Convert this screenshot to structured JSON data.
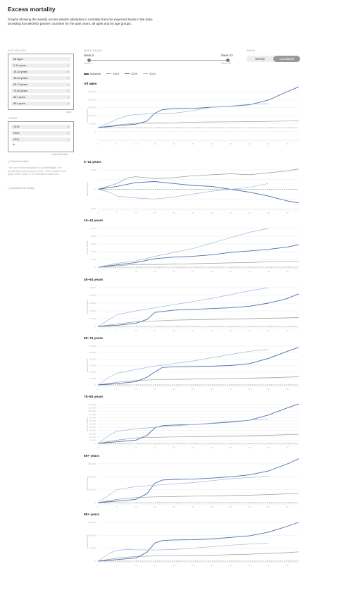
{
  "header": {
    "title": "Excess mortality",
    "description": "Graphs showing the weekly excess deaths (deviation in mortality from the expected level) in the data-providing EuroMOMO partner countries for the past years, all ages and by age groups."
  },
  "controls": {
    "age_groups_label": "AGE GROUPS",
    "age_groups": [
      "All ages",
      "0-14 years",
      "15-44 years",
      "45-64 years",
      "65-74 years",
      "75-84 years",
      "65+ years",
      "85+ years"
    ],
    "age_clear": "clear",
    "years_label": "YEARS",
    "years": [
      "2019",
      "2020",
      "2021"
    ],
    "add_year": "+",
    "select_clear": "select all | clear",
    "week_range_label": "WEEK RANGE",
    "week_start": "Week 0",
    "week_end": "Week 53",
    "week_start_sub": "Week 0",
    "week_end_sub": "Week 53",
    "show_label": "SHOW",
    "show_options": [
      "Weekly",
      "Cumulated"
    ],
    "show_selected": "Cumulated",
    "download_data": "⤓ Download data",
    "note": "* Any use of this data/graphs is acknowledged: \"the EuroMOMO (euromomo.eu) 2021\". When posted to the graph will be pulled to the estimated source use.",
    "download_image": "⤓ Download as image"
  },
  "colors": {
    "baseline": "#555555",
    "y2019": "#9a9a9a",
    "y2020": "#4a6fb0",
    "y2021": "#9fb8df",
    "grid": "#ececec",
    "tick": "#bbbbbb"
  },
  "chart_data": [
    {
      "type": "line",
      "title": "All ages",
      "ylabel": "Excess deaths",
      "ylim": [
        -100000,
        300000
      ],
      "yticks": [
        "",
        "0",
        "50 000",
        "100 000",
        "150 000",
        "200 000",
        "250 000"
      ],
      "xticks": [
        "0",
        "5",
        "10",
        "15",
        "20",
        "25",
        "30",
        "35",
        "40",
        "45",
        "50"
      ],
      "series": [
        {
          "name": "2019",
          "x": [
            0,
            5,
            10,
            15,
            20,
            25,
            30,
            35,
            40,
            45,
            50,
            53
          ],
          "values": [
            0,
            22000,
            37000,
            38000,
            40000,
            45000,
            47000,
            48000,
            50000,
            52000,
            55000,
            56000
          ]
        },
        {
          "name": "2020",
          "x": [
            0,
            5,
            10,
            13,
            15,
            17,
            20,
            25,
            30,
            35,
            40,
            45,
            50,
            53
          ],
          "values": [
            0,
            15000,
            28000,
            55000,
            120000,
            150000,
            158000,
            160000,
            170000,
            178000,
            190000,
            230000,
            300000,
            340000
          ]
        },
        {
          "name": "2021",
          "x": [
            0,
            3,
            5,
            8,
            10,
            15,
            20,
            25,
            30,
            35,
            40,
            45
          ],
          "values": [
            0,
            40000,
            70000,
            100000,
            110000,
            115000,
            120000,
            140000,
            170000,
            180000,
            195000,
            200000
          ]
        }
      ]
    },
    {
      "type": "line",
      "title": "0–14 years",
      "ylabel": "Excess deaths",
      "ylim": [
        -1000,
        1000
      ],
      "yticks": [
        "-1000",
        "",
        "0",
        "",
        "1000"
      ],
      "xticks": [
        "0",
        "5",
        "10",
        "15",
        "20",
        "25",
        "30",
        "35",
        "40",
        "45",
        "50"
      ],
      "series": [
        {
          "name": "2019",
          "x": [
            0,
            5,
            8,
            10,
            15,
            20,
            25,
            30,
            35,
            40,
            45,
            50,
            53
          ],
          "values": [
            0,
            300,
            600,
            650,
            550,
            600,
            700,
            750,
            800,
            750,
            850,
            950,
            1050
          ]
        },
        {
          "name": "2020",
          "x": [
            0,
            5,
            10,
            15,
            20,
            25,
            30,
            35,
            40,
            45,
            50,
            53
          ],
          "values": [
            0,
            150,
            350,
            400,
            300,
            200,
            150,
            0,
            -150,
            -350,
            -600,
            -700
          ]
        },
        {
          "name": "2021",
          "x": [
            0,
            3,
            5,
            10,
            15,
            20,
            25,
            30,
            35,
            40,
            45
          ],
          "values": [
            0,
            -150,
            -350,
            -450,
            -500,
            -400,
            -250,
            -100,
            0,
            100,
            300
          ]
        }
      ]
    },
    {
      "type": "line",
      "title": "15–44 years",
      "ylabel": "Excess deaths",
      "ylim": [
        0,
        5000
      ],
      "yticks": [
        "0",
        "1 000",
        "2 000",
        "3 000",
        "4 000",
        "5 000"
      ],
      "xticks": [
        "0",
        "5",
        "10",
        "15",
        "20",
        "25",
        "30",
        "35",
        "40",
        "45",
        "50"
      ],
      "series": [
        {
          "name": "2019",
          "x": [
            0,
            5,
            10,
            15,
            20,
            25,
            30,
            35,
            40,
            45,
            50,
            53
          ],
          "values": [
            0,
            200,
            350,
            350,
            400,
            450,
            500,
            550,
            600,
            700,
            750,
            800
          ]
        },
        {
          "name": "2020",
          "x": [
            0,
            5,
            10,
            15,
            20,
            25,
            30,
            35,
            40,
            45,
            50,
            53
          ],
          "values": [
            0,
            300,
            600,
            1100,
            1300,
            1400,
            1600,
            1900,
            2100,
            2300,
            2600,
            2900
          ]
        },
        {
          "name": "2021",
          "x": [
            0,
            5,
            10,
            15,
            20,
            25,
            30,
            35,
            40,
            45
          ],
          "values": [
            0,
            500,
            800,
            1400,
            1900,
            2400,
            3100,
            3800,
            4500,
            5000
          ]
        }
      ]
    },
    {
      "type": "line",
      "title": "45–64 years",
      "ylabel": "Excess deaths",
      "ylim": [
        0,
        50000
      ],
      "yticks": [
        "0",
        "10 000",
        "20 000",
        "30 000",
        "40 000",
        "50 000"
      ],
      "xticks": [
        "0",
        "5",
        "10",
        "15",
        "20",
        "25",
        "30",
        "35",
        "40",
        "45",
        "50"
      ],
      "series": [
        {
          "name": "2019",
          "x": [
            0,
            5,
            10,
            15,
            20,
            25,
            30,
            35,
            40,
            45,
            50,
            53
          ],
          "values": [
            0,
            3000,
            6000,
            7000,
            8000,
            8500,
            9000,
            9500,
            10000,
            10500,
            11000,
            11500
          ]
        },
        {
          "name": "2020",
          "x": [
            0,
            5,
            10,
            13,
            15,
            20,
            25,
            30,
            35,
            40,
            45,
            50,
            53
          ],
          "values": [
            0,
            1500,
            4000,
            9000,
            18000,
            21000,
            22000,
            23000,
            24000,
            26000,
            30000,
            36000,
            42000
          ]
        },
        {
          "name": "2021",
          "x": [
            0,
            3,
            5,
            10,
            15,
            20,
            25,
            30,
            35,
            40,
            45
          ],
          "values": [
            0,
            9000,
            15000,
            20000,
            24000,
            28000,
            32000,
            36000,
            41000,
            46000,
            50000
          ]
        }
      ]
    },
    {
      "type": "line",
      "title": "65–74 years",
      "ylabel": "Excess deaths",
      "ylim": [
        0,
        60000
      ],
      "yticks": [
        "0",
        "10 000",
        "20 000",
        "30 000",
        "40 000",
        "50 000",
        "60 000"
      ],
      "xticks": [
        "0",
        "5",
        "10",
        "15",
        "20",
        "25",
        "30",
        "35",
        "40",
        "45",
        "50"
      ],
      "series": [
        {
          "name": "2019",
          "x": [
            0,
            5,
            10,
            15,
            20,
            25,
            30,
            35,
            40,
            45,
            50,
            53
          ],
          "values": [
            0,
            4000,
            7000,
            8000,
            8500,
            9000,
            9500,
            10000,
            10500,
            11000,
            12000,
            12500
          ]
        },
        {
          "name": "2020",
          "x": [
            0,
            5,
            10,
            13,
            15,
            17,
            20,
            25,
            30,
            35,
            40,
            45,
            50,
            53
          ],
          "values": [
            0,
            2000,
            5000,
            12000,
            20000,
            27000,
            28000,
            28500,
            29000,
            30000,
            33000,
            41000,
            52000,
            58000
          ]
        },
        {
          "name": "2021",
          "x": [
            0,
            3,
            5,
            10,
            15,
            20,
            25,
            30,
            35,
            40,
            45
          ],
          "values": [
            0,
            12000,
            18000,
            24000,
            29000,
            33000,
            37000,
            42000,
            47000,
            52000,
            55000
          ]
        }
      ]
    },
    {
      "type": "line",
      "title": "75–84 years",
      "ylabel": "Excess deaths",
      "ylim": [
        0,
        120000
      ],
      "yticks": [
        "0",
        "10 000",
        "20 000",
        "30 000",
        "40 000",
        "50 000",
        "60 000",
        "70 000",
        "80 000",
        "90 000",
        "100 000",
        "110 000",
        "120 000"
      ],
      "xticks": [
        "0",
        "5",
        "10",
        "15",
        "20",
        "25",
        "30",
        "35",
        "40",
        "45",
        "50"
      ],
      "series": [
        {
          "name": "2019",
          "x": [
            0,
            5,
            10,
            15,
            20,
            25,
            30,
            35,
            40,
            45,
            50,
            53
          ],
          "values": [
            0,
            10000,
            17000,
            19000,
            20000,
            21000,
            22000,
            23000,
            24000,
            25000,
            27000,
            28000
          ]
        },
        {
          "name": "2020",
          "x": [
            0,
            5,
            10,
            13,
            15,
            17,
            20,
            25,
            30,
            35,
            40,
            45,
            50,
            53
          ],
          "values": [
            0,
            5000,
            10000,
            25000,
            48000,
            55000,
            57000,
            58000,
            62000,
            66000,
            72000,
            88000,
            110000,
            122000
          ]
        },
        {
          "name": "2021",
          "x": [
            0,
            3,
            5,
            10,
            15,
            20,
            25,
            30,
            35,
            40,
            45
          ],
          "values": [
            0,
            25000,
            38000,
            45000,
            50000,
            54000,
            58000,
            63000,
            68000,
            72000,
            76000
          ]
        }
      ]
    },
    {
      "type": "line",
      "title": "65+ years",
      "ylabel": "Excess deaths",
      "ylim": [
        0,
        300000
      ],
      "yticks": [
        "0",
        "100 000",
        "200 000",
        "300 000"
      ],
      "xticks": [
        "0",
        "5",
        "10",
        "15",
        "20",
        "25",
        "30",
        "35",
        "40",
        "45",
        "50"
      ],
      "series": [
        {
          "name": "2019",
          "x": [
            0,
            5,
            10,
            15,
            20,
            25,
            30,
            35,
            40,
            45,
            50,
            53
          ],
          "values": [
            0,
            25000,
            40000,
            45000,
            47000,
            50000,
            52000,
            55000,
            58000,
            62000,
            68000,
            72000
          ]
        },
        {
          "name": "2020",
          "x": [
            0,
            5,
            10,
            13,
            15,
            17,
            20,
            25,
            30,
            35,
            40,
            45,
            50,
            53
          ],
          "values": [
            0,
            12000,
            25000,
            70000,
            150000,
            175000,
            180000,
            182000,
            190000,
            200000,
            215000,
            245000,
            300000,
            340000
          ]
        },
        {
          "name": "2021",
          "x": [
            0,
            3,
            5,
            10,
            15,
            20,
            25,
            30,
            35,
            40,
            45
          ],
          "values": [
            0,
            60000,
            100000,
            125000,
            135000,
            145000,
            155000,
            170000,
            185000,
            195000,
            205000
          ]
        }
      ]
    },
    {
      "type": "line",
      "title": "85+ years",
      "ylabel": "Excess deaths",
      "ylim": [
        0,
        150000
      ],
      "yticks": [
        "0",
        "50 000",
        "100 000",
        "150 000"
      ],
      "xticks": [
        "0",
        "5",
        "10",
        "15",
        "20",
        "25",
        "30",
        "35",
        "40",
        "45",
        "50"
      ],
      "series": [
        {
          "name": "2019",
          "x": [
            0,
            5,
            10,
            15,
            20,
            25,
            30,
            35,
            40,
            45,
            50,
            53
          ],
          "values": [
            0,
            12000,
            18000,
            20000,
            21000,
            22000,
            23000,
            25000,
            27000,
            30000,
            33000,
            36000
          ]
        },
        {
          "name": "2020",
          "x": [
            0,
            5,
            10,
            13,
            15,
            17,
            20,
            25,
            30,
            35,
            40,
            45,
            50,
            53
          ],
          "values": [
            0,
            6000,
            12000,
            35000,
            70000,
            80000,
            82000,
            83000,
            86000,
            92000,
            98000,
            112000,
            135000,
            150000
          ]
        },
        {
          "name": "2021",
          "x": [
            0,
            3,
            5,
            8,
            10,
            15,
            20,
            25,
            30,
            35,
            40,
            45
          ],
          "values": [
            0,
            30000,
            42000,
            45000,
            44000,
            43000,
            45000,
            50000,
            56000,
            62000,
            66000,
            70000
          ]
        }
      ]
    }
  ],
  "legend": [
    "Baseline",
    "2019",
    "2020",
    "2021"
  ]
}
